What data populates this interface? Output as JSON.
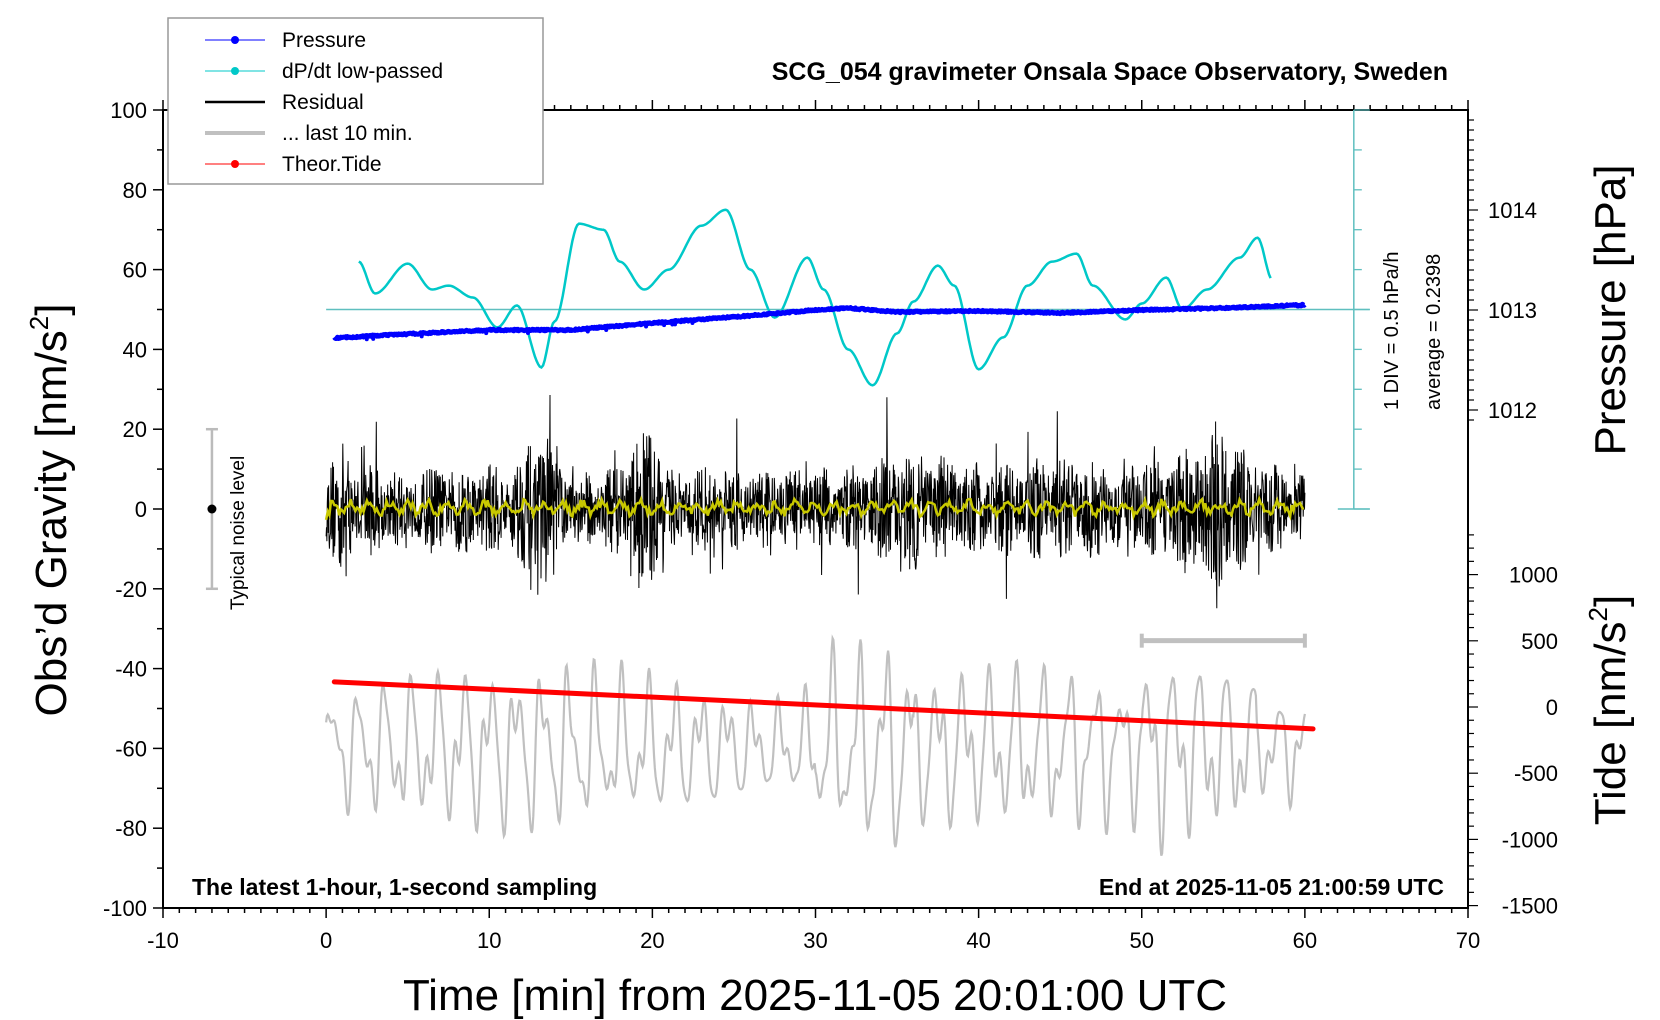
{
  "chart_data": {
    "type": "line",
    "title": "SCG_054 gravimeter Onsala Space Observatory, Sweden",
    "xlabel": "Time [min] from 2025-11-05 20:01:00 UTC",
    "ylabel_left": "Obs’d Gravity [nm/s²]",
    "ylabel_left_main": "Obs’d Gravity [nm/s",
    "ylabel_left_sup": "2",
    "ylabel_left_close": "]",
    "ylabel_right_pressure": "Pressure [hPa]",
    "ylabel_right_tide_main": "Tide [nm/s",
    "ylabel_right_tide_sup": "2",
    "ylabel_right_tide_close": "]",
    "xlim": [
      -10,
      70
    ],
    "ylim": [
      -100,
      100
    ],
    "pressure_axis": {
      "ticks": [
        1012,
        1013,
        1014
      ],
      "minor_step": 0.1
    },
    "tide_axis": {
      "ticks": [
        -1500,
        -1000,
        -500,
        0,
        500,
        1000
      ],
      "minor_step": 100,
      "range": [
        -1500,
        1000
      ]
    },
    "x_ticks": [
      -10,
      0,
      10,
      20,
      30,
      40,
      50,
      60,
      70
    ],
    "y_ticks": [
      -100,
      -80,
      -60,
      -40,
      -20,
      0,
      20,
      40,
      60,
      80,
      100
    ],
    "grid": false,
    "legend_position": "top-left",
    "legend": [
      {
        "label": "Pressure",
        "color": "#0000ff",
        "style": "line-dot"
      },
      {
        "label": "dP/dt low-passed",
        "color": "#00c8c8",
        "style": "line-dot"
      },
      {
        "label": "Residual",
        "color": "#000000",
        "style": "line"
      },
      {
        "label": "... last 10 min.",
        "color": "#c0c0c0",
        "style": "thick-line"
      },
      {
        "label": "Theor.Tide",
        "color": "#ff0000",
        "style": "line-dot"
      }
    ],
    "annotations": {
      "bottom_left": "The latest 1-hour, 1-second sampling",
      "bottom_right": "End at 2025-11-05 21:00:59 UTC",
      "noise_label": "Typical noise level",
      "noise_bar": {
        "x": -7,
        "center": 0,
        "range": [
          -20,
          20
        ]
      },
      "div_label": "1 DIV = 0.5 hPa/h",
      "average_label": "average = 0.2398",
      "last10_bar": {
        "x_range": [
          50,
          60
        ],
        "y": -33
      }
    },
    "series": [
      {
        "name": "Pressure",
        "unit": "hPa",
        "color": "#0000ff",
        "x": [
          0.5,
          5,
          10,
          15,
          20,
          25,
          30,
          32,
          35,
          40,
          45,
          50,
          55,
          60
        ],
        "values": [
          1012.72,
          1012.76,
          1012.8,
          1012.8,
          1012.87,
          1012.93,
          1013.0,
          1013.02,
          1012.98,
          1012.99,
          1012.97,
          1013.0,
          1013.02,
          1013.05
        ]
      },
      {
        "name": "dP/dt low-passed",
        "unit": "nm/s2-scaled",
        "color": "#00c8c8",
        "reference_level": 50,
        "x": [
          2,
          3,
          5,
          6.5,
          7.5,
          9,
          10.5,
          11.7,
          13.2,
          14,
          15.5,
          17,
          18,
          19.5,
          21,
          23,
          24.5,
          26,
          27.5,
          29.5,
          30.5,
          32,
          33.5,
          35,
          36,
          37.5,
          38.5,
          40,
          41.5,
          43,
          44.5,
          46,
          47,
          49,
          50,
          51.5,
          52.5,
          54,
          56,
          57.1,
          58
        ],
        "values": [
          62,
          54,
          61.5,
          55,
          56,
          53,
          45.5,
          51,
          35.5,
          47,
          71.5,
          70,
          62,
          55,
          60,
          71,
          75,
          60,
          48,
          63,
          55,
          40,
          31,
          44,
          52,
          61,
          56,
          35,
          43,
          56,
          62,
          64,
          56,
          47.5,
          51.5,
          58,
          50,
          55,
          63,
          68,
          57.5
        ]
      },
      {
        "name": "Residual",
        "color": "#000000",
        "envelope_x": [
          0,
          1,
          2,
          5,
          8,
          11,
          12,
          13,
          14,
          15,
          17,
          18,
          19.5,
          20.5,
          21,
          24,
          27,
          30,
          33,
          36,
          40,
          44,
          48,
          51,
          55,
          57,
          60
        ],
        "envelope_amp": [
          22,
          26,
          18,
          16,
          18,
          17,
          22,
          34,
          26,
          14,
          16,
          18,
          33,
          35,
          15,
          17,
          16,
          16,
          18,
          24,
          18,
          20,
          18,
          20,
          32,
          20,
          14
        ],
        "smoothed_color": "#c8c800"
      },
      {
        "name": "... last 10 min.",
        "color": "#c0c0c0",
        "x_range": [
          0,
          60
        ],
        "range_nm_s2": [
          -70,
          30
        ],
        "note": "repeated last-10-min residual, offset below"
      },
      {
        "name": "Theor.Tide",
        "unit": "nm/s2",
        "color": "#ff0000",
        "x": [
          0.5,
          60.5
        ],
        "values": [
          190,
          -165
        ]
      }
    ]
  }
}
